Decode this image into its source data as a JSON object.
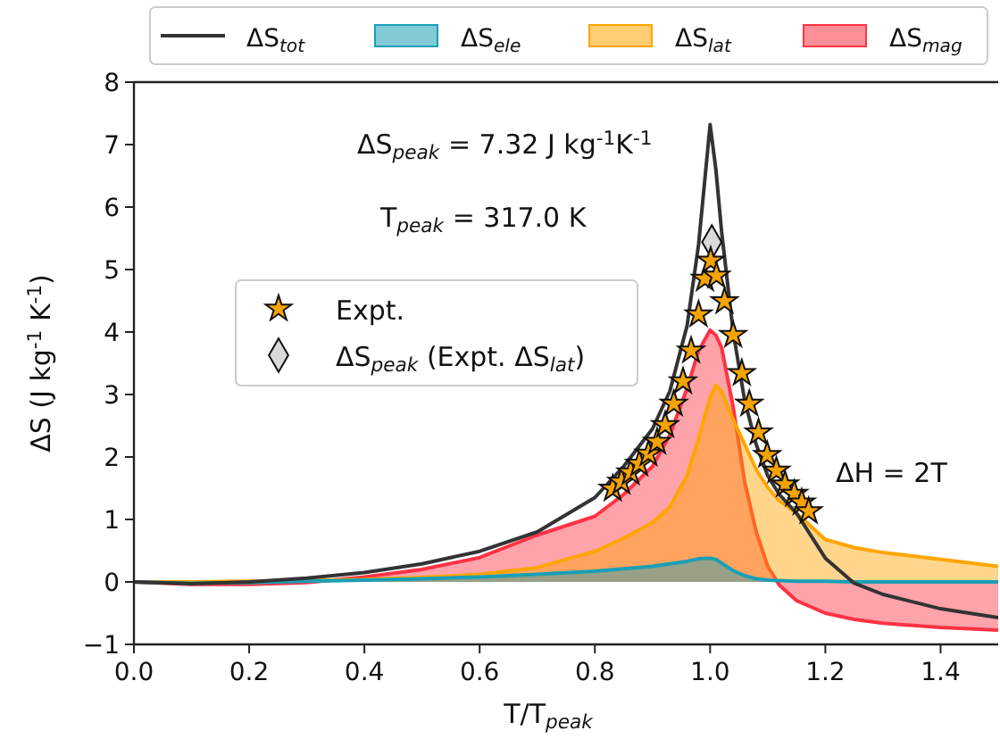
{
  "chart_data": {
    "type": "area",
    "xlabel": "T/T$_{peak}$",
    "ylabel": "ΔS (J kg$^{-1}$ K$^{-1}$)",
    "annotations": [
      "ΔS$_{peak}$ = 7.32 J kg$^{-1}$K$^{-1}$",
      "T$_{peak}$ = 317.0 K",
      "ΔH = 2T"
    ],
    "x": [
      0,
      0.1,
      0.2,
      0.3,
      0.4,
      0.5,
      0.6,
      0.7,
      0.8,
      0.85,
      0.9,
      0.93,
      0.96,
      0.98,
      1.0,
      1.01,
      1.02,
      1.04,
      1.06,
      1.08,
      1.1,
      1.12,
      1.15,
      1.2,
      1.25,
      1.3,
      1.4,
      1.5
    ],
    "series": [
      {
        "name": "ΔS$_{tot}$",
        "type": "line",
        "color": "#333333",
        "values": [
          0,
          -0.03,
          0,
          0.06,
          0.15,
          0.29,
          0.49,
          0.8,
          1.35,
          1.85,
          2.45,
          3.05,
          4.1,
          5.4,
          7.32,
          6.6,
          5.6,
          4.0,
          2.9,
          2.2,
          1.7,
          1.4,
          1.1,
          0.38,
          -0.02,
          -0.2,
          -0.43,
          -0.57
        ]
      },
      {
        "name": "ΔS$_{ele}$",
        "color": "#1a9fb5",
        "values": [
          0,
          -0.02,
          -0.01,
          0.01,
          0.03,
          0.05,
          0.08,
          0.12,
          0.17,
          0.21,
          0.25,
          0.29,
          0.33,
          0.37,
          0.38,
          0.36,
          0.3,
          0.18,
          0.1,
          0.05,
          0.03,
          0.02,
          0.01,
          0.01,
          0,
          0,
          0,
          0
        ]
      },
      {
        "name": "ΔS$_{lat}$",
        "color": "#ffa500",
        "values": [
          0,
          0,
          0.01,
          0.02,
          0.04,
          0.07,
          0.12,
          0.23,
          0.49,
          0.7,
          0.95,
          1.2,
          1.7,
          2.3,
          2.95,
          3.15,
          3.05,
          2.6,
          2.2,
          1.8,
          1.51,
          1.3,
          1.1,
          0.68,
          0.55,
          0.47,
          0.36,
          0.25
        ]
      },
      {
        "name": "ΔS$_{mag}$",
        "color": "#ff3344",
        "values": [
          0,
          -0.04,
          -0.04,
          -0.01,
          0.08,
          0.2,
          0.39,
          0.75,
          1.05,
          1.4,
          1.85,
          2.35,
          3.1,
          3.7,
          4.03,
          3.95,
          3.75,
          2.8,
          1.6,
          0.8,
          0.25,
          -0.05,
          -0.3,
          -0.5,
          -0.6,
          -0.66,
          -0.73,
          -0.77
        ]
      },
      {
        "name": "Expt.",
        "type": "scatter",
        "marker": "star",
        "color": "#f5a300",
        "x": [
          0.831,
          0.846,
          0.862,
          0.877,
          0.893,
          0.908,
          0.922,
          0.937,
          0.953,
          0.967,
          0.98,
          0.991,
          1.001,
          1.011,
          1.025,
          1.04,
          1.055,
          1.068,
          1.084,
          1.099,
          1.115,
          1.13,
          1.146,
          1.159,
          1.171
        ],
        "values": [
          1.49,
          1.6,
          1.75,
          1.89,
          2.05,
          2.24,
          2.51,
          2.85,
          3.21,
          3.7,
          4.28,
          4.85,
          5.14,
          4.9,
          4.49,
          3.95,
          3.34,
          2.85,
          2.39,
          2.03,
          1.78,
          1.56,
          1.41,
          1.27,
          1.13
        ]
      },
      {
        "name": "ΔS$_{peak}$ (Expt. ΔS$_{lat}$)",
        "type": "scatter",
        "marker": "diamond",
        "color": "#d9d9d9",
        "x": [
          1.003
        ],
        "values": [
          5.44
        ]
      }
    ],
    "xlim": [
      0,
      1.5
    ],
    "xticks": [
      {
        "value": 0,
        "label": "0.0"
      },
      {
        "value": 0.2,
        "label": "0.2"
      },
      {
        "value": 0.4,
        "label": "0.4"
      },
      {
        "value": 0.6,
        "label": "0.6"
      },
      {
        "value": 0.8,
        "label": "0.8"
      },
      {
        "value": 1,
        "label": "1.0"
      },
      {
        "value": 1.2,
        "label": "1.2"
      },
      {
        "value": 1.4,
        "label": "1.4"
      }
    ],
    "ylim": [
      -1,
      8
    ],
    "yticks": [
      {
        "value": -1,
        "label": "−1"
      },
      0,
      1,
      2,
      3,
      4,
      5,
      6,
      7,
      8
    ],
    "legend": "top",
    "grid": false
  }
}
